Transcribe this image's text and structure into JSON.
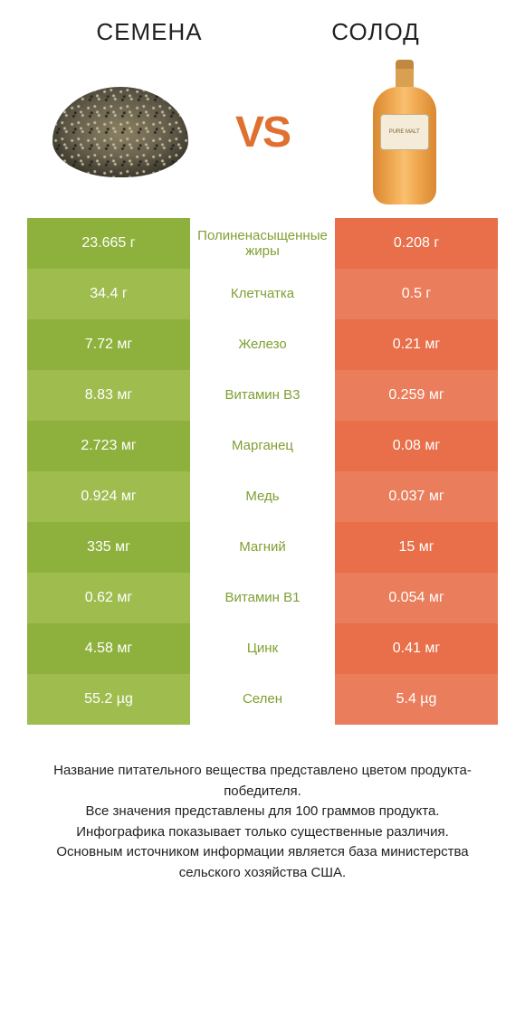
{
  "header": {
    "left": "СЕМЕНА",
    "right": "СОЛОД"
  },
  "vs": "VS",
  "bottle_label": "PURE MALT",
  "colors": {
    "left_a": "#8eb03c",
    "left_b": "#9fbc4f",
    "right_a": "#e86f4a",
    "right_b": "#ea7e5c",
    "mid_text_left": "#7fa033",
    "mid_text_right": "#d85a38",
    "vs": "#e07a3a"
  },
  "rows": [
    {
      "left": "23.665 г",
      "label": "Полиненасыщенные жиры",
      "right": "0.208 г",
      "winner": "left"
    },
    {
      "left": "34.4 г",
      "label": "Клетчатка",
      "right": "0.5 г",
      "winner": "left"
    },
    {
      "left": "7.72 мг",
      "label": "Железо",
      "right": "0.21 мг",
      "winner": "left"
    },
    {
      "left": "8.83 мг",
      "label": "Витамин B3",
      "right": "0.259 мг",
      "winner": "left"
    },
    {
      "left": "2.723 мг",
      "label": "Марганец",
      "right": "0.08 мг",
      "winner": "left"
    },
    {
      "left": "0.924 мг",
      "label": "Медь",
      "right": "0.037 мг",
      "winner": "left"
    },
    {
      "left": "335 мг",
      "label": "Магний",
      "right": "15 мг",
      "winner": "left"
    },
    {
      "left": "0.62 мг",
      "label": "Витамин B1",
      "right": "0.054 мг",
      "winner": "left"
    },
    {
      "left": "4.58 мг",
      "label": "Цинк",
      "right": "0.41 мг",
      "winner": "left"
    },
    {
      "left": "55.2 µg",
      "label": "Селен",
      "right": "5.4 µg",
      "winner": "left"
    }
  ],
  "footer": "Название питательного вещества представлено цветом продукта-победителя.\nВсе значения представлены для 100 граммов продукта.\nИнфографика показывает только существенные различия.\nОсновным источником информации является база министерства сельского хозяйства США."
}
